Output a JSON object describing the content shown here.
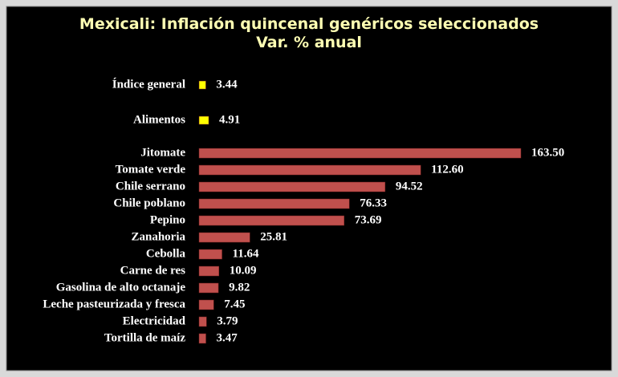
{
  "chart_data": {
    "type": "bar",
    "orientation": "horizontal",
    "title": "Mexicali: Inflación quincenal genéricos seleccionados",
    "subtitle": "Var. % anual",
    "categories": [
      "Índice general",
      "Alimentos",
      "Jitomate",
      "Tomate verde",
      "Chile serrano",
      "Chile poblano",
      "Pepino",
      "Zanahoria",
      "Cebolla",
      "Carne de res",
      "Gasolina de alto octanaje",
      "Leche pasteurizada y fresca",
      "Electricidad",
      "Tortilla de maíz"
    ],
    "values": [
      3.44,
      4.91,
      163.5,
      112.6,
      94.52,
      76.33,
      73.69,
      25.81,
      11.64,
      10.09,
      9.82,
      7.45,
      3.79,
      3.47
    ],
    "value_labels": [
      "3.44",
      "4.91",
      "163.50",
      "112.60",
      "94.52",
      "76.33",
      "73.69",
      "25.81",
      "11.64",
      "10.09",
      "9.82",
      "7.45",
      "3.79",
      "3.47"
    ],
    "colors": [
      "#ffff00",
      "#ffff00",
      "#c0504d",
      "#c0504d",
      "#c0504d",
      "#c0504d",
      "#c0504d",
      "#c0504d",
      "#c0504d",
      "#c0504d",
      "#c0504d",
      "#c0504d",
      "#c0504d",
      "#c0504d"
    ]
  }
}
